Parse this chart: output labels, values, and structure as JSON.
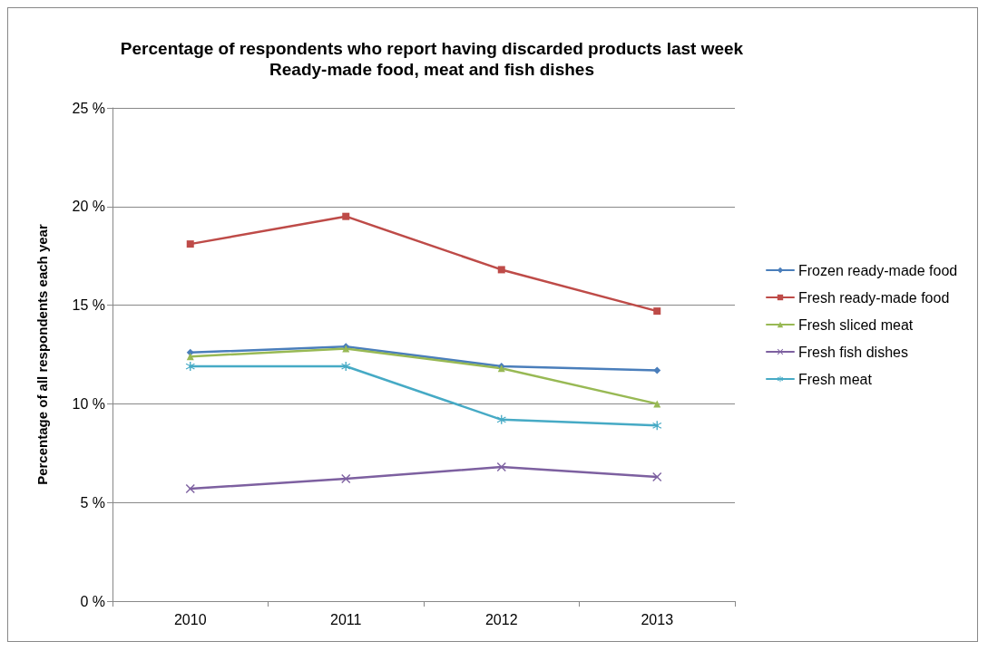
{
  "chart_data": {
    "type": "line",
    "title": "Percentage of respondents who report having discarded products last week",
    "subtitle": "Ready-made food, meat and fish dishes",
    "ylabel": "Percentage of all respondents each year",
    "categories": [
      "2010",
      "2011",
      "2012",
      "2013"
    ],
    "series": [
      {
        "name": "Frozen ready-made food",
        "color": "#4a7ebb",
        "marker": "diamond",
        "values": [
          12.6,
          12.9,
          11.9,
          11.7
        ]
      },
      {
        "name": "Fresh ready-made food",
        "color": "#be4b48",
        "marker": "square",
        "values": [
          18.1,
          19.5,
          16.8,
          14.7
        ]
      },
      {
        "name": "Fresh sliced meat",
        "color": "#98b954",
        "marker": "triangle",
        "values": [
          12.4,
          12.8,
          11.8,
          10.0
        ]
      },
      {
        "name": "Fresh fish dishes",
        "color": "#7d60a0",
        "marker": "cross",
        "values": [
          5.7,
          6.2,
          6.8,
          6.3
        ]
      },
      {
        "name": "Fresh meat",
        "color": "#46aac5",
        "marker": "star",
        "values": [
          11.9,
          11.9,
          9.2,
          8.9
        ]
      }
    ],
    "ylim": [
      0,
      25
    ],
    "yticks": [
      {
        "value": 0,
        "label": "0 %"
      },
      {
        "value": 5,
        "label": "5 %"
      },
      {
        "value": 10,
        "label": "10 %"
      },
      {
        "value": 15,
        "label": "15 %"
      },
      {
        "value": 20,
        "label": "20 %"
      },
      {
        "value": 25,
        "label": "25 %"
      }
    ],
    "grid": "y",
    "legend": "right",
    "line_style": "solid"
  }
}
